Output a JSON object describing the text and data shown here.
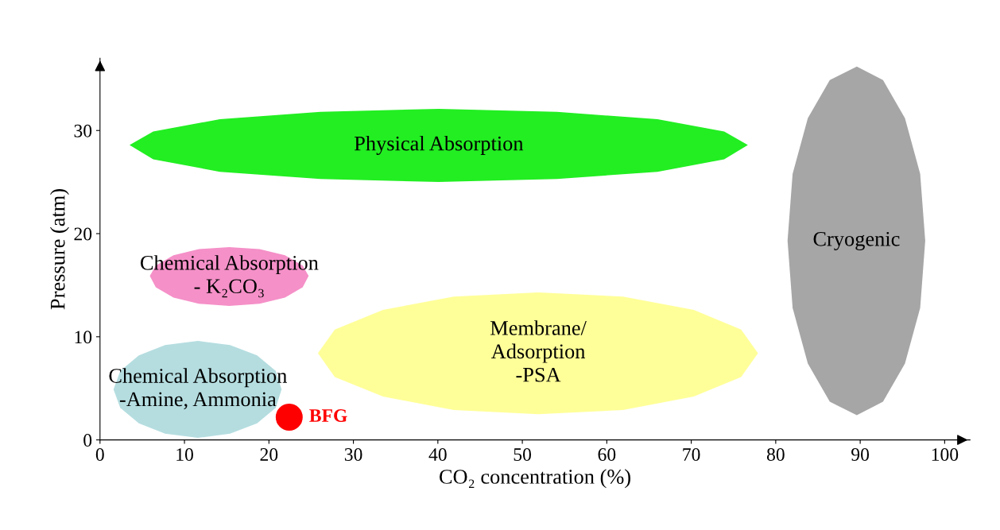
{
  "chart_data": {
    "type": "scatter",
    "xlabel": "CO₂ concentration (%)",
    "ylabel": "Pressure (atm)",
    "xlim": [
      0,
      103
    ],
    "ylim": [
      0,
      37
    ],
    "xticks": [
      0,
      10,
      20,
      30,
      40,
      50,
      60,
      70,
      80,
      90,
      100
    ],
    "yticks": [
      0,
      10,
      20,
      30
    ],
    "grid": false,
    "legend": false,
    "series": [
      {
        "name": "Physical Absorption",
        "type": "area",
        "color": "#22ee22",
        "x": [
          76.7,
          73.9,
          66.0,
          54.1,
          40.1,
          26.1,
          14.2,
          6.3,
          3.5,
          6.3,
          14.2,
          26.1,
          40.1,
          54.1,
          66.0,
          73.9
        ],
        "values": [
          28.6,
          29.9,
          31.1,
          31.8,
          32.1,
          31.8,
          31.1,
          29.9,
          28.6,
          27.2,
          26.0,
          25.3,
          25.0,
          25.3,
          26.0,
          27.2
        ]
      },
      {
        "name": "Chemical Absorption\n- K₂CO₃",
        "type": "area",
        "color": "#f590c8",
        "x": [
          24.7,
          24.0,
          21.9,
          18.9,
          15.3,
          11.7,
          8.7,
          6.6,
          5.9,
          6.6,
          8.7,
          11.7,
          15.3,
          18.9,
          21.9,
          24.0
        ],
        "values": [
          15.9,
          16.9,
          17.9,
          18.5,
          18.7,
          18.5,
          17.9,
          16.9,
          15.9,
          14.8,
          13.8,
          13.2,
          13.0,
          13.2,
          13.8,
          14.8
        ]
      },
      {
        "name": "Chemical Absorption\n-Amine, Ammonia",
        "type": "area",
        "color": "#b5dde0",
        "x": [
          21.5,
          20.8,
          18.6,
          15.4,
          11.6,
          7.7,
          4.6,
          2.4,
          1.6,
          2.4,
          4.6,
          7.7,
          11.6,
          15.4,
          18.6,
          20.8
        ],
        "values": [
          4.9,
          6.7,
          8.2,
          9.2,
          9.6,
          9.2,
          8.2,
          6.7,
          4.9,
          3.1,
          1.6,
          0.6,
          0.2,
          0.6,
          1.6,
          3.1
        ]
      },
      {
        "name": "Membrane/\nAdsorption\n-PSA",
        "type": "area",
        "color": "#ffff99",
        "x": [
          77.9,
          75.9,
          70.3,
          61.9,
          51.9,
          41.9,
          33.5,
          27.8,
          25.8,
          27.8,
          33.5,
          41.9,
          51.9,
          61.9,
          70.3,
          75.9
        ],
        "values": [
          8.4,
          10.7,
          12.6,
          13.9,
          14.3,
          13.9,
          12.6,
          10.7,
          8.4,
          6.1,
          4.2,
          2.9,
          2.5,
          2.9,
          4.2,
          6.1
        ]
      },
      {
        "name": "Cryogenic",
        "type": "area",
        "color": "#a6a6a6",
        "x": [
          97.7,
          97.1,
          95.3,
          92.7,
          89.6,
          86.4,
          83.8,
          82.0,
          81.4,
          82.0,
          83.8,
          86.4,
          89.6,
          92.7,
          95.3,
          97.1
        ],
        "values": [
          19.3,
          25.8,
          31.2,
          34.9,
          36.2,
          34.9,
          31.2,
          25.8,
          19.3,
          12.8,
          7.4,
          3.7,
          2.4,
          3.7,
          7.4,
          12.8
        ]
      },
      {
        "name": "BFG",
        "marker": "circle",
        "color": "#ff0000",
        "x": [
          22.4
        ],
        "values": [
          2.2
        ]
      }
    ]
  }
}
